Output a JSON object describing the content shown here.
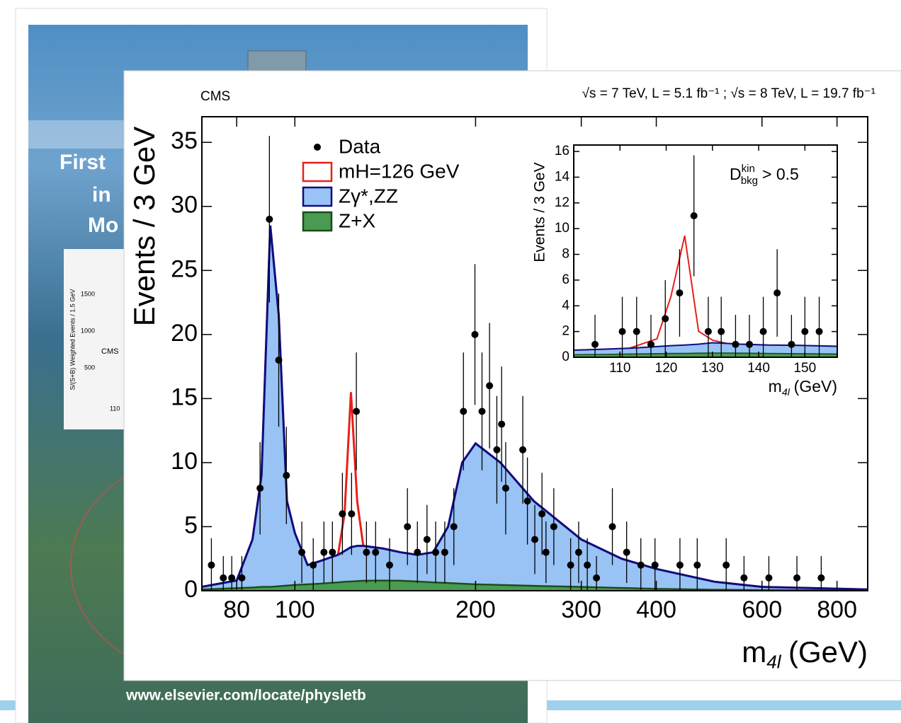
{
  "background": {
    "cover_texts": [
      "First",
      "in",
      "Mo"
    ],
    "cover_chart_texts": [
      "CMS",
      "1500",
      "1000",
      "500",
      "110",
      "S/(S+B) Weighted Events / 1.5 GeV"
    ],
    "url": "www.elsevier.com/locate/physletb"
  },
  "chart_data": [
    {
      "type": "step",
      "label": "CMS",
      "subtitle": "√s = 7 TeV, L = 5.1 fb⁻¹ ; √s = 8 TeV, L = 19.7 fb⁻¹",
      "y_label": "Events / 3 GeV",
      "x_label": {
        "base": "m",
        "sub": "4l",
        "text": "(GeV)"
      },
      "xlog": true,
      "xlim": [
        70,
        900
      ],
      "xticks": [
        80,
        100,
        200,
        300,
        400,
        600,
        800
      ],
      "ylim": [
        0,
        37
      ],
      "yticks": [
        0,
        5,
        10,
        15,
        20,
        25,
        30,
        35
      ],
      "x": [
        70,
        80,
        85,
        88,
        91,
        94,
        97,
        100,
        105,
        110,
        118,
        121,
        124,
        127,
        130,
        140,
        150,
        160,
        170,
        180,
        190,
        200,
        220,
        250,
        300,
        350,
        400,
        500,
        600,
        900
      ],
      "series": [
        {
          "name": "Data",
          "color": "#000000",
          "x": [
            72.6,
            76,
            78.5,
            81.6,
            87.5,
            90.7,
            94,
            96.8,
            102.7,
            107.3,
            111.8,
            115.5,
            120,
            124.3,
            126.6,
            131.6,
            136.3,
            143.8,
            154,
            160,
            166,
            171.6,
            177.7,
            184,
            190.9,
            199.5,
            205,
            211,
            217,
            221,
            224.5,
            239.7,
            244,
            251,
            258,
            262,
            270,
            288,
            297,
            307,
            318,
            338,
            357,
            377,
            398,
            438,
            468,
            523,
            560,
            616,
            686,
            753
          ],
          "values": [
            2,
            1,
            1,
            1,
            8,
            29,
            18,
            9,
            3,
            2,
            3,
            3,
            6,
            6,
            14,
            3,
            3,
            2,
            5,
            3,
            4,
            3,
            3,
            5,
            14,
            20,
            14,
            16,
            11,
            13,
            8,
            11,
            7,
            4,
            6,
            3,
            5,
            2,
            3,
            2,
            1,
            5,
            3,
            2,
            2,
            2,
            2,
            2,
            1,
            1,
            1,
            1
          ],
          "errors": [
            2.1,
            1.7,
            1.7,
            1.7,
            3.6,
            6.5,
            5.2,
            3.8,
            2.4,
            2.1,
            2.4,
            2.4,
            3.2,
            3.2,
            4.6,
            2.4,
            2.4,
            2.1,
            3.0,
            2.4,
            2.7,
            2.4,
            2.4,
            3.0,
            4.6,
            5.5,
            4.6,
            4.9,
            4.2,
            4.5,
            3.6,
            4.2,
            3.4,
            2.7,
            3.2,
            2.4,
            3.0,
            2.1,
            2.4,
            2.1,
            1.7,
            3.0,
            2.4,
            2.1,
            2.1,
            2.1,
            2.1,
            2.1,
            1.7,
            1.7,
            1.7,
            1.7
          ]
        },
        {
          "name": "mH=126 GeV",
          "color": "#e8201a",
          "fill": "#ffffff",
          "values": [
            0,
            0,
            0,
            0,
            0,
            0,
            0,
            0,
            0,
            0,
            0,
            2.9,
            12.1,
            3.5,
            0,
            0,
            0,
            0,
            0,
            0,
            0,
            0,
            0,
            0,
            0,
            0,
            0,
            0,
            0,
            0
          ]
        },
        {
          "name": "Zγ*,ZZ",
          "color": "#0d0d80",
          "fill": "#99c2f5",
          "values": [
            0.2,
            0.6,
            3.75,
            8.7,
            28.2,
            21.15,
            6.6,
            4.05,
            1.5,
            1.75,
            2.15,
            2.4,
            2.68,
            2.75,
            2.72,
            2.5,
            2.22,
            2.08,
            2.35,
            4.4,
            9.45,
            11,
            9.55,
            6.62,
            3.7,
            2.28,
            1.55,
            0.62,
            0.25,
            0.08
          ]
        },
        {
          "name": "Z+X",
          "color": "#174d17",
          "fill": "#4a9a52",
          "values": [
            0.1,
            0.2,
            0.25,
            0.3,
            0.3,
            0.35,
            0.4,
            0.45,
            0.5,
            0.55,
            0.65,
            0.7,
            0.72,
            0.75,
            0.78,
            0.8,
            0.78,
            0.72,
            0.65,
            0.6,
            0.55,
            0.5,
            0.45,
            0.38,
            0.3,
            0.22,
            0.15,
            0.08,
            0.05,
            0.02
          ]
        }
      ]
    },
    {
      "type": "step",
      "annotation": {
        "base": "D",
        "sup": "kin",
        "sub": "bkg",
        "text": "> 0.5"
      },
      "y_label": "Events / 3 GeV",
      "x_label": {
        "base": "m",
        "sub": "4l",
        "text": "(GeV)"
      },
      "xlog": false,
      "xlim": [
        100,
        157
      ],
      "xticks": [
        110,
        120,
        130,
        140,
        150
      ],
      "ylim": [
        0,
        16.5
      ],
      "yticks": [
        0,
        2,
        4,
        6,
        8,
        10,
        12,
        14,
        16
      ],
      "x": [
        100,
        106,
        112,
        118,
        121,
        124,
        127,
        130,
        133,
        136,
        142,
        148,
        157
      ],
      "series": [
        {
          "name": "Data",
          "color": "#000000",
          "x": [
            104.6,
            110.5,
            113.6,
            116.7,
            119.8,
            122.9,
            126,
            129.1,
            131.9,
            135,
            138,
            141,
            144,
            147.1,
            150,
            153.1
          ],
          "values": [
            1,
            2,
            2,
            1,
            3,
            5,
            11,
            2,
            2,
            1,
            1,
            2,
            5,
            1,
            2,
            2
          ],
          "errors": [
            2.3,
            2.7,
            2.7,
            2.3,
            3.0,
            3.4,
            4.7,
            2.7,
            2.7,
            2.3,
            2.3,
            2.7,
            3.4,
            2.3,
            2.7,
            2.7
          ]
        },
        {
          "color": "#e8201a",
          "fill": "#ffffff",
          "values": [
            0,
            0,
            0,
            0.6,
            3.8,
            8.5,
            1,
            0.2,
            0,
            0,
            0,
            0,
            0
          ]
        },
        {
          "color": "#0d0d80",
          "fill": "#99c2f5",
          "values": [
            0.35,
            0.4,
            0.45,
            0.55,
            0.6,
            0.65,
            0.7,
            0.8,
            0.75,
            0.7,
            0.65,
            0.65,
            0.6
          ]
        },
        {
          "color": "#174d17",
          "fill": "#4a9a52",
          "values": [
            0.2,
            0.22,
            0.25,
            0.28,
            0.3,
            0.3,
            0.32,
            0.33,
            0.33,
            0.32,
            0.3,
            0.28,
            0.25
          ]
        }
      ]
    }
  ]
}
